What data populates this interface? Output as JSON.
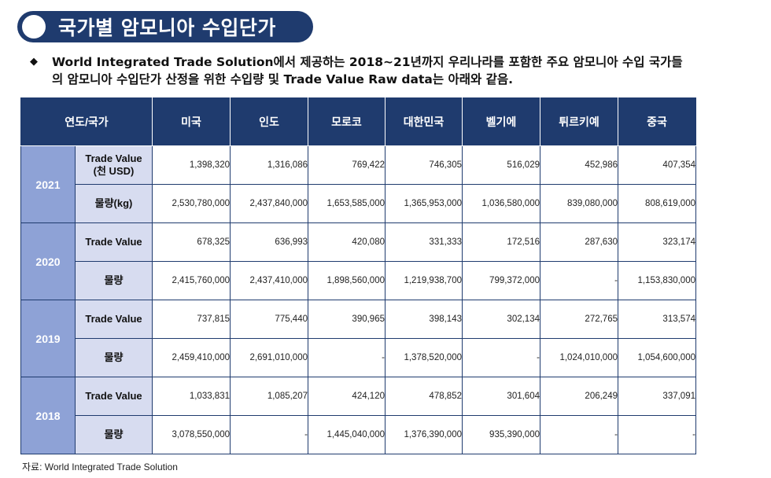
{
  "title": "국가별 암모니아 수입단가",
  "description": "World Integrated Trade Solution에서 제공하는 2018~21년까지 우리나라를 포함한 주요 암모니아 수입 국가들의 암모니아 수입단가 산정을 위한 수입량 및 Trade Value Raw data는 아래와 같음.",
  "bullet_icon": "diamond-bullet",
  "table": {
    "header_first": "연도/국가",
    "countries": [
      "미국",
      "인도",
      "모로코",
      "대한민국",
      "벨기에",
      "튀르키예",
      "중국"
    ],
    "years": [
      {
        "year": "2021",
        "rows": [
          {
            "label_line1": "Trade Value",
            "label_line2": "(천 USD)",
            "values": [
              "1,398,320",
              "1,316,086",
              "769,422",
              "746,305",
              "516,029",
              "452,986",
              "407,354"
            ]
          },
          {
            "label_line1": "물량(kg)",
            "label_line2": "",
            "values": [
              "2,530,780,000",
              "2,437,840,000",
              "1,653,585,000",
              "1,365,953,000",
              "1,036,580,000",
              "839,080,000",
              "808,619,000"
            ]
          }
        ]
      },
      {
        "year": "2020",
        "rows": [
          {
            "label_line1": "Trade Value",
            "label_line2": "",
            "values": [
              "678,325",
              "636,993",
              "420,080",
              "331,333",
              "172,516",
              "287,630",
              "323,174"
            ]
          },
          {
            "label_line1": "물량",
            "label_line2": "",
            "values": [
              "2,415,760,000",
              "2,437,410,000",
              "1,898,560,000",
              "1,219,938,700",
              "799,372,000",
              "-",
              "1,153,830,000"
            ]
          }
        ]
      },
      {
        "year": "2019",
        "rows": [
          {
            "label_line1": "Trade Value",
            "label_line2": "",
            "values": [
              "737,815",
              "775,440",
              "390,965",
              "398,143",
              "302,134",
              "272,765",
              "313,574"
            ]
          },
          {
            "label_line1": "물량",
            "label_line2": "",
            "values": [
              "2,459,410,000",
              "2,691,010,000",
              "-",
              "1,378,520,000",
              "-",
              "1,024,010,000",
              "1,054,600,000"
            ]
          }
        ]
      },
      {
        "year": "2018",
        "rows": [
          {
            "label_line1": "Trade Value",
            "label_line2": "",
            "values": [
              "1,033,831",
              "1,085,207",
              "424,120",
              "478,852",
              "301,604",
              "206,249",
              "337,091"
            ]
          },
          {
            "label_line1": "물량",
            "label_line2": "",
            "values": [
              "3,078,550,000",
              "-",
              "1,445,040,000",
              "1,376,390,000",
              "935,390,000",
              "-",
              "-"
            ]
          }
        ]
      }
    ]
  },
  "source": "자료: World Integrated Trade Solution"
}
